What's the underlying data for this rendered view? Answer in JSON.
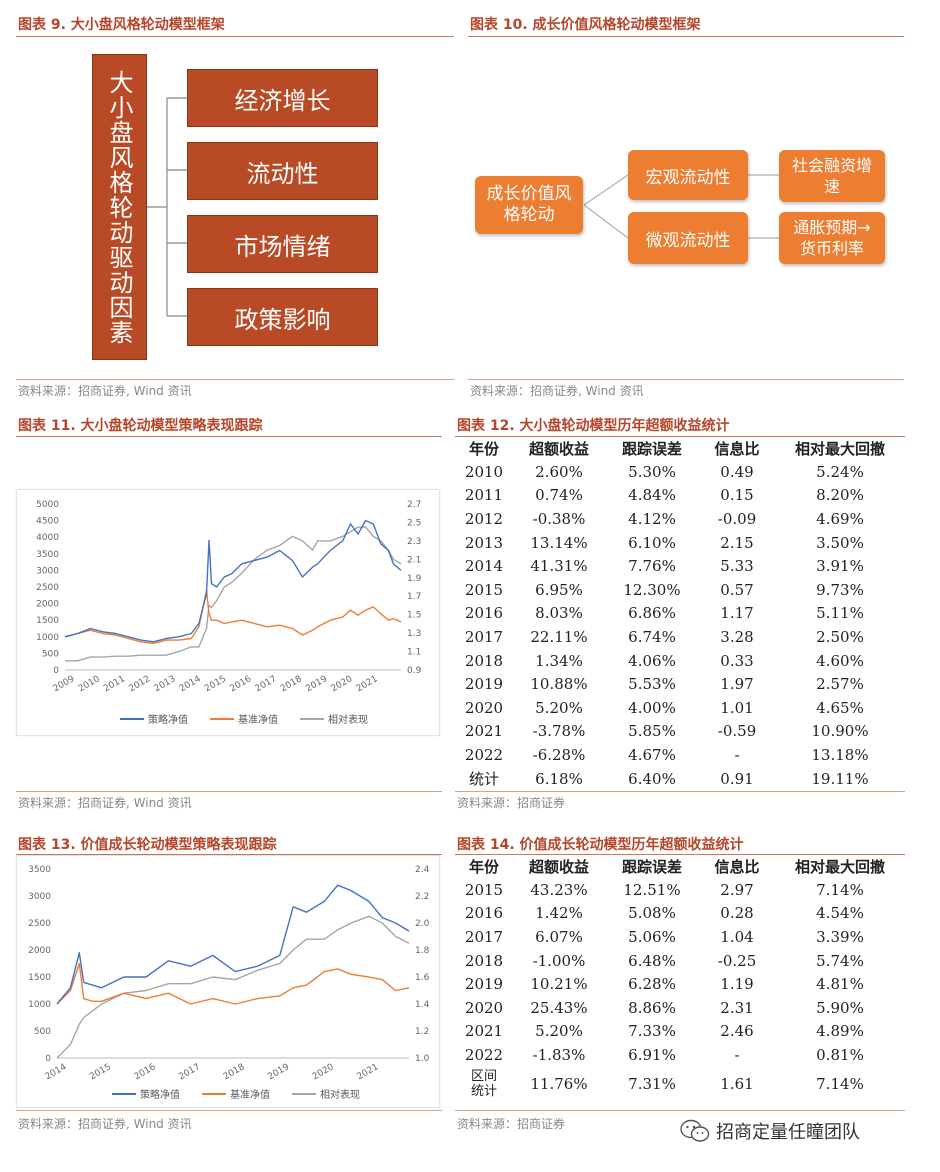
{
  "fig9": {
    "title": "图表 9.  大小盘风格轮动模型框架",
    "vertical_label": "大小盘风格轮动驱动因素",
    "factors": [
      "经济增长",
      "流动性",
      "市场情绪",
      "政策影响"
    ],
    "source": "资料来源：招商证券, Wind 资讯"
  },
  "fig10": {
    "title": "图表 10.  成长价值风格轮动模型框架",
    "root": "成长价值风格轮动",
    "branches": [
      {
        "label": "宏观流动性",
        "leaf": "社会融资增速"
      },
      {
        "label": "微观流动性",
        "leaf": "通胀预期→货币利率"
      }
    ],
    "source": "资料来源：招商证券, Wind 资讯"
  },
  "fig11": {
    "title": "图表 11.  大小盘轮动模型策略表现跟踪",
    "source": "资料来源：招商证券, Wind 资讯"
  },
  "fig12": {
    "title": "图表 12.  大小盘轮动模型历年超额收益统计",
    "headers": [
      "年份",
      "超额收益",
      "跟踪误差",
      "信息比",
      "相对最大回撤"
    ],
    "rows": [
      [
        "2010",
        "2.60%",
        "5.30%",
        "0.49",
        "5.24%"
      ],
      [
        "2011",
        "0.74%",
        "4.84%",
        "0.15",
        "8.20%"
      ],
      [
        "2012",
        "-0.38%",
        "4.12%",
        "-0.09",
        "4.69%"
      ],
      [
        "2013",
        "13.14%",
        "6.10%",
        "2.15",
        "3.50%"
      ],
      [
        "2014",
        "41.31%",
        "7.76%",
        "5.33",
        "3.91%"
      ],
      [
        "2015",
        "6.95%",
        "12.30%",
        "0.57",
        "9.73%"
      ],
      [
        "2016",
        "8.03%",
        "6.86%",
        "1.17",
        "5.11%"
      ],
      [
        "2017",
        "22.11%",
        "6.74%",
        "3.28",
        "2.50%"
      ],
      [
        "2018",
        "1.34%",
        "4.06%",
        "0.33",
        "4.60%"
      ],
      [
        "2019",
        "10.88%",
        "5.53%",
        "1.97",
        "2.57%"
      ],
      [
        "2020",
        "5.20%",
        "4.00%",
        "1.01",
        "4.65%"
      ],
      [
        "2021",
        "-3.78%",
        "5.85%",
        "-0.59",
        "10.90%"
      ],
      [
        "2022",
        "-6.28%",
        "4.67%",
        "-",
        "13.18%"
      ],
      [
        "统计",
        "6.18%",
        "6.40%",
        "0.91",
        "19.11%"
      ]
    ],
    "source": "资料来源：招商证券"
  },
  "fig13": {
    "title": "图表 13.  价值成长轮动模型策略表现跟踪",
    "source": "资料来源：招商证券, Wind 资讯"
  },
  "fig14": {
    "title": "图表 14.  价值成长轮动模型历年超额收益统计",
    "headers": [
      "年份",
      "超额收益",
      "跟踪误差",
      "信息比",
      "相对最大回撤"
    ],
    "rows": [
      [
        "2015",
        "43.23%",
        "12.51%",
        "2.97",
        "7.14%"
      ],
      [
        "2016",
        "1.42%",
        "5.08%",
        "0.28",
        "4.54%"
      ],
      [
        "2017",
        "6.07%",
        "5.06%",
        "1.04",
        "3.39%"
      ],
      [
        "2018",
        "-1.00%",
        "6.48%",
        "-0.25",
        "5.74%"
      ],
      [
        "2019",
        "10.21%",
        "6.28%",
        "1.19",
        "4.81%"
      ],
      [
        "2020",
        "25.43%",
        "8.86%",
        "2.31",
        "5.90%"
      ],
      [
        "2021",
        "5.20%",
        "7.33%",
        "2.46",
        "4.89%"
      ],
      [
        "2022",
        "-1.83%",
        "6.91%",
        "-",
        "0.81%"
      ]
    ],
    "summary_row": [
      "区间统计",
      "11.76%",
      "7.31%",
      "1.61",
      "7.14%"
    ],
    "source": "资料来源：招商证券"
  },
  "watermark": "招商定量任瞳团队",
  "chart_data": [
    {
      "id": "fig11",
      "type": "line",
      "x_ticks": [
        "2009",
        "2010",
        "2011",
        "2012",
        "2013",
        "2014",
        "2015",
        "2016",
        "2017",
        "2018",
        "2019",
        "2020",
        "2021"
      ],
      "x": [
        2009.0,
        2009.5,
        2010.0,
        2010.5,
        2011.0,
        2011.5,
        2012.0,
        2012.5,
        2013.0,
        2013.5,
        2014.0,
        2014.3,
        2014.6,
        2014.7,
        2014.8,
        2015.0,
        2015.3,
        2015.6,
        2016.0,
        2016.5,
        2017.0,
        2017.5,
        2018.0,
        2018.4,
        2018.8,
        2019.0,
        2019.5,
        2020.0,
        2020.3,
        2020.6,
        2020.9,
        2021.2,
        2021.5,
        2021.8,
        2022.0,
        2022.3
      ],
      "y_left": {
        "min": 0,
        "max": 5000,
        "ticks": [
          0,
          500,
          1000,
          1500,
          2000,
          2500,
          3000,
          3500,
          4000,
          4500,
          5000
        ]
      },
      "y_right": {
        "min": 0.9,
        "max": 2.7,
        "ticks": [
          0.9,
          1.1,
          1.3,
          1.5,
          1.7,
          1.9,
          2.1,
          2.3,
          2.5,
          2.7
        ]
      },
      "series": [
        {
          "name": "策略净值",
          "color": "#4472c4",
          "axis": "left",
          "values": [
            1000,
            1100,
            1250,
            1150,
            1100,
            1000,
            900,
            850,
            950,
            1000,
            1100,
            1400,
            2300,
            3900,
            2600,
            2500,
            2800,
            2900,
            3200,
            3300,
            3400,
            3600,
            3300,
            2800,
            3100,
            3200,
            3600,
            3900,
            4400,
            4100,
            4500,
            4400,
            3800,
            3600,
            3200,
            3000
          ]
        },
        {
          "name": "基准净值",
          "color": "#ed7d31",
          "axis": "left",
          "values": [
            1000,
            1100,
            1200,
            1100,
            1050,
            950,
            850,
            800,
            900,
            900,
            950,
            1300,
            2400,
            1700,
            1500,
            1500,
            1400,
            1450,
            1500,
            1400,
            1300,
            1350,
            1250,
            1050,
            1200,
            1300,
            1500,
            1600,
            1800,
            1650,
            1800,
            1900,
            1700,
            1500,
            1550,
            1450
          ]
        },
        {
          "name": "相对表现",
          "color": "#a5a5a5",
          "axis": "right",
          "values": [
            1.0,
            1.0,
            1.04,
            1.04,
            1.05,
            1.05,
            1.06,
            1.06,
            1.06,
            1.1,
            1.15,
            1.15,
            1.35,
            1.6,
            1.58,
            1.65,
            1.8,
            1.85,
            1.95,
            2.1,
            2.2,
            2.25,
            2.35,
            2.3,
            2.2,
            2.3,
            2.3,
            2.35,
            2.4,
            2.45,
            2.45,
            2.35,
            2.3,
            2.2,
            2.1,
            2.05
          ]
        }
      ]
    },
    {
      "id": "fig13",
      "type": "line",
      "x_ticks": [
        "2014",
        "2015",
        "2016",
        "2017",
        "2018",
        "2019",
        "2020",
        "2021"
      ],
      "x": [
        2014.0,
        2014.3,
        2014.5,
        2014.6,
        2014.8,
        2015.0,
        2015.5,
        2016.0,
        2016.5,
        2017.0,
        2017.5,
        2018.0,
        2018.5,
        2019.0,
        2019.3,
        2019.6,
        2020.0,
        2020.3,
        2020.6,
        2021.0,
        2021.3,
        2021.6,
        2021.9
      ],
      "y_left": {
        "min": 0,
        "max": 3500,
        "ticks": [
          0,
          500,
          1000,
          1500,
          2000,
          2500,
          3000,
          3500
        ]
      },
      "y_right": {
        "min": 1.0,
        "max": 2.4,
        "ticks": [
          1.0,
          1.2,
          1.4,
          1.6,
          1.8,
          2.0,
          2.2,
          2.4
        ]
      },
      "series": [
        {
          "name": "策略净值",
          "color": "#4472c4",
          "axis": "left",
          "values": [
            1000,
            1300,
            1950,
            1400,
            1350,
            1300,
            1500,
            1500,
            1800,
            1700,
            1900,
            1600,
            1700,
            1900,
            2800,
            2700,
            2900,
            3200,
            3100,
            2900,
            2600,
            2500,
            2350
          ]
        },
        {
          "name": "基准净值",
          "color": "#ed7d31",
          "axis": "left",
          "values": [
            1000,
            1250,
            1750,
            1100,
            1050,
            1050,
            1200,
            1100,
            1200,
            1000,
            1100,
            1000,
            1100,
            1150,
            1300,
            1350,
            1600,
            1650,
            1550,
            1500,
            1450,
            1250,
            1300
          ]
        },
        {
          "name": "相对表现",
          "color": "#a5a5a5",
          "axis": "right",
          "values": [
            1.0,
            1.1,
            1.25,
            1.3,
            1.35,
            1.4,
            1.48,
            1.5,
            1.55,
            1.55,
            1.6,
            1.58,
            1.65,
            1.7,
            1.8,
            1.88,
            1.88,
            1.95,
            2.0,
            2.05,
            2.0,
            1.9,
            1.85
          ]
        }
      ]
    }
  ]
}
